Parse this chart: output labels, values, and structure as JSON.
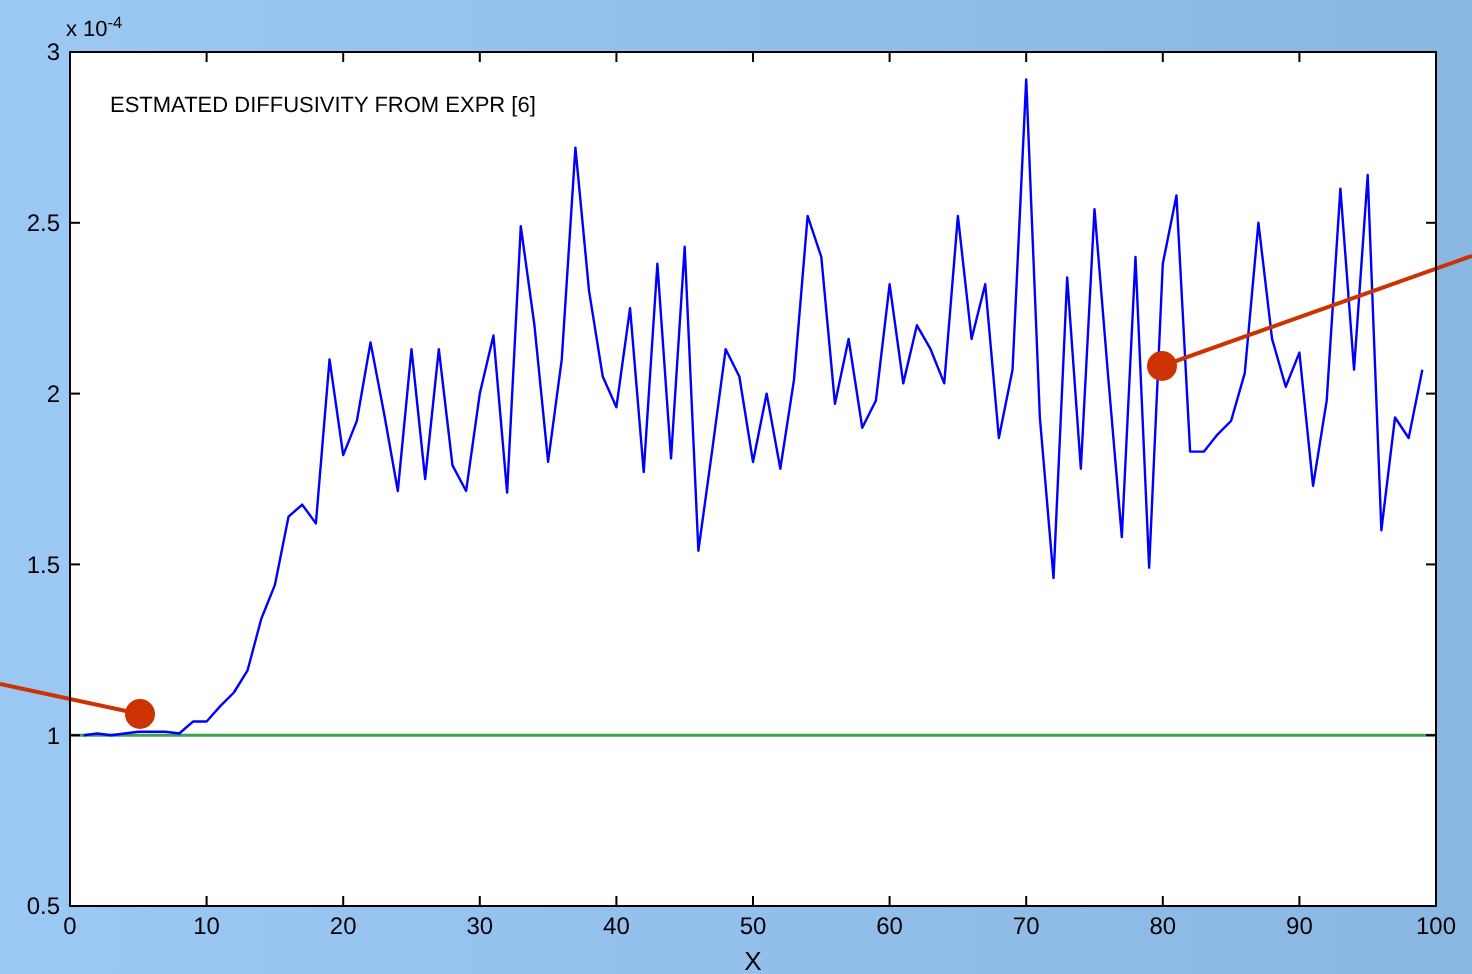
{
  "chart_data": {
    "type": "line",
    "xlabel": "X",
    "annotations": [
      "ESTMATED DIFFUSIVITY FROM EXPR [6]",
      "x 10$^{-4}$"
    ],
    "x": [
      1,
      2,
      3,
      4,
      5,
      6,
      7,
      8,
      9,
      10,
      11,
      12,
      13,
      14,
      15,
      16,
      17,
      18,
      19,
      20,
      21,
      22,
      23,
      24,
      25,
      26,
      27,
      28,
      29,
      30,
      31,
      32,
      33,
      34,
      35,
      36,
      37,
      38,
      39,
      40,
      41,
      42,
      43,
      44,
      45,
      46,
      47,
      48,
      49,
      50,
      51,
      52,
      53,
      54,
      55,
      56,
      57,
      58,
      59,
      60,
      61,
      62,
      63,
      64,
      65,
      66,
      67,
      68,
      69,
      70,
      71,
      72,
      73,
      74,
      75,
      76,
      77,
      78,
      79,
      80,
      81,
      82,
      83,
      84,
      85,
      86,
      87,
      88,
      89,
      90,
      91,
      92,
      93,
      94,
      95,
      96,
      97,
      98,
      99
    ],
    "series": [
      {
        "color": "#0000ff",
        "values": [
          1.0,
          1.005,
          1.0,
          1.005,
          1.01,
          1.01,
          1.01,
          1.005,
          1.04,
          1.04,
          1.085,
          1.125,
          1.19,
          1.34,
          1.44,
          1.64,
          1.675,
          1.62,
          2.1,
          1.82,
          1.92,
          2.15,
          1.94,
          1.715,
          2.13,
          1.75,
          2.13,
          1.79,
          1.715,
          2.0,
          2.17,
          1.71,
          2.49,
          2.2,
          1.8,
          2.1,
          2.72,
          2.3,
          2.05,
          1.96,
          2.25,
          1.77,
          2.38,
          1.81,
          2.43,
          1.54,
          1.83,
          2.13,
          2.05,
          1.8,
          2.0,
          1.78,
          2.04,
          2.52,
          2.4,
          1.97,
          2.16,
          1.9,
          1.98,
          2.32,
          2.03,
          2.2,
          2.13,
          2.03,
          2.52,
          2.16,
          2.32,
          1.87,
          2.07,
          2.92,
          1.93,
          1.46,
          2.34,
          1.78,
          2.54,
          2.05,
          1.58,
          2.4,
          1.49,
          2.38,
          2.58,
          1.83,
          1.83,
          1.88,
          1.92,
          2.06,
          2.5,
          2.16,
          2.02,
          2.12,
          1.73,
          1.98,
          2.6,
          2.07,
          2.64,
          1.6,
          1.93,
          1.87,
          2.07
        ]
      }
    ],
    "ref_lines": [
      {
        "axis": "y",
        "value": 1,
        "color": "#3fa34d"
      }
    ],
    "xlim": [
      0,
      100
    ],
    "xticks": [
      0,
      10,
      20,
      30,
      40,
      50,
      60,
      70,
      80,
      90,
      100
    ],
    "ylim": [
      0.5,
      3
    ],
    "yticks": [
      0.5,
      1,
      1.5,
      2,
      2.5,
      3
    ],
    "grid": false,
    "marker": "none",
    "line_style": "solid"
  }
}
